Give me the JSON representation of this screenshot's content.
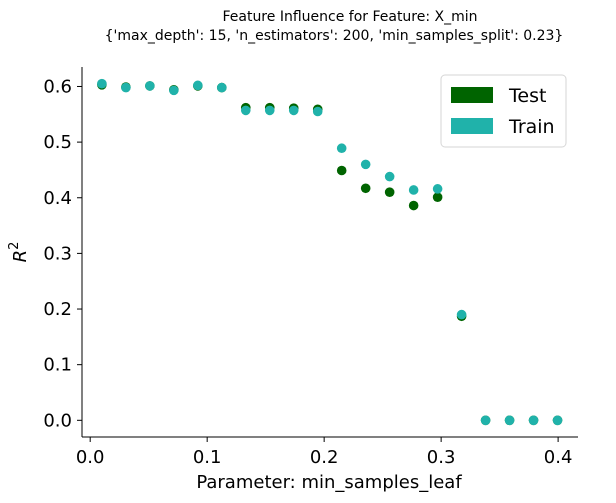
{
  "chart_data": {
    "type": "scatter",
    "title": "Feature Influence for Feature: X_min",
    "subtitle": "{'max_depth': 15, 'n_estimators': 200, 'min_samples_split': 0.23}",
    "xlabel": "Parameter: min_samples_leaf",
    "ylabel": "R²",
    "xlim": [
      -0.007,
      0.417
    ],
    "ylim": [
      -0.03,
      0.635
    ],
    "xticks": [
      0.0,
      0.1,
      0.2,
      0.3,
      0.4
    ],
    "xtick_labels": [
      "0.0",
      "0.1",
      "0.2",
      "0.3",
      "0.4"
    ],
    "yticks": [
      0.0,
      0.1,
      0.2,
      0.3,
      0.4,
      0.5,
      0.6
    ],
    "ytick_labels": [
      "0.0",
      "0.1",
      "0.2",
      "0.3",
      "0.4",
      "0.5",
      "0.6"
    ],
    "grid": false,
    "legend_position": "top-right",
    "x": [
      0.01,
      0.0305,
      0.051,
      0.0715,
      0.092,
      0.1125,
      0.133,
      0.1535,
      0.174,
      0.1945,
      0.215,
      0.2355,
      0.256,
      0.2765,
      0.297,
      0.3175,
      0.338,
      0.3585,
      0.379,
      0.3995
    ],
    "series": [
      {
        "name": "Test",
        "color": "#006400",
        "values": [
          0.603,
          0.599,
          0.601,
          0.594,
          0.601,
          0.598,
          0.562,
          0.562,
          0.561,
          0.559,
          0.449,
          0.417,
          0.41,
          0.386,
          0.401,
          0.187,
          0.0,
          0.0,
          0.0,
          0.0
        ]
      },
      {
        "name": "Train",
        "color": "#20b2aa",
        "values": [
          0.605,
          0.598,
          0.601,
          0.593,
          0.602,
          0.598,
          0.557,
          0.557,
          0.557,
          0.555,
          0.489,
          0.46,
          0.438,
          0.414,
          0.416,
          0.19,
          0.0,
          0.0,
          0.0,
          0.0
        ]
      }
    ]
  }
}
